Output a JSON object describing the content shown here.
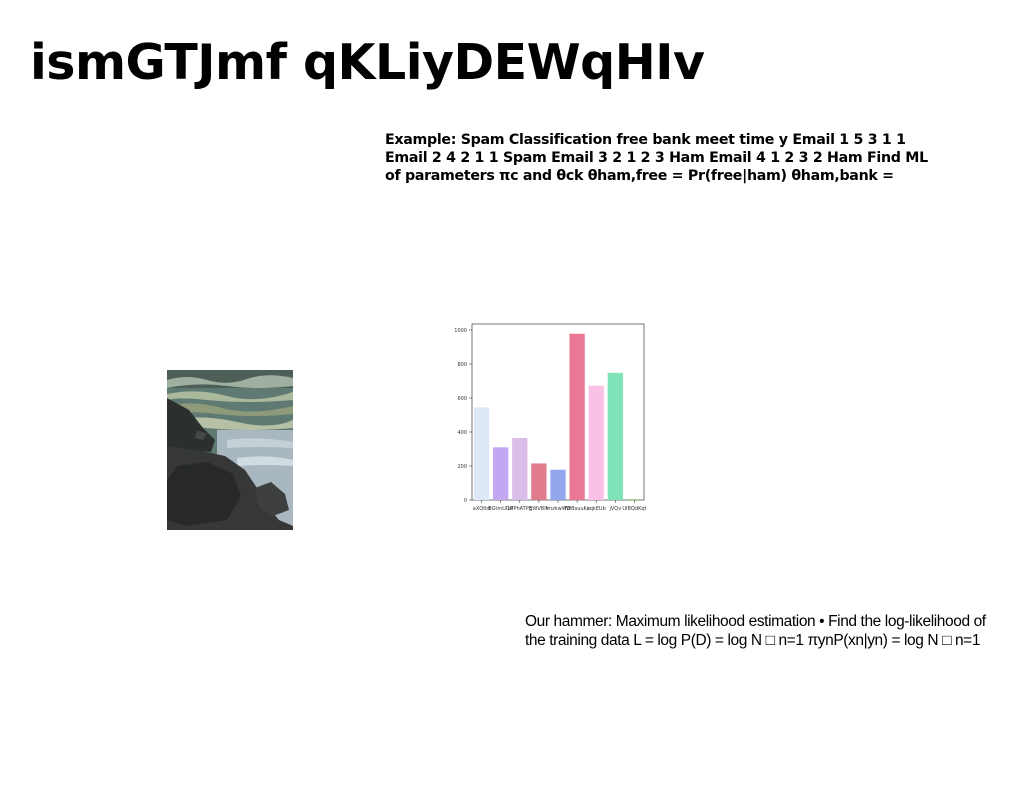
{
  "slide": {
    "title": "ismGTJmf qKLiyDEWqHIv",
    "example_lines": [
      "Example: Spam Classification free bank meet time y Email 1 5 3 1 1",
      "Email 2 4 2 1 1 Spam Email 3 2 1 2 3 Ham Email 4 1 2 3 2 Ham Find ML",
      "of parameters πc and θck θham,free = Pr(free|ham) θham,bank ="
    ],
    "hammer_lines": [
      "Our hammer: Maximum likelihood estimation • Find the log-likelihood of",
      "the training data L = log P(D) = log N □ n=1 πynP(xn|yn) = log N □ n=1"
    ]
  },
  "chart_data": {
    "type": "bar",
    "categories": [
      "aXQttd",
      "BGtmUDR",
      "LPPhATPE",
      "gWVBlk",
      "fmzkwWD",
      "fWBsuuKu",
      "aqkEUb",
      "jVQv",
      "UIBQdKqt"
    ],
    "values": [
      545,
      310,
      365,
      215,
      178,
      978,
      672,
      748,
      5
    ],
    "colors": [
      "#dce8f7",
      "#c2a7f2",
      "#dbbde9",
      "#e07c8e",
      "#93a7ef",
      "#ea7894",
      "#f8c1e5",
      "#7ee3b9",
      "#9ccc7d"
    ],
    "yticks": [
      0,
      200,
      400,
      600,
      800,
      1000
    ],
    "ylim": [
      0,
      1000
    ]
  }
}
